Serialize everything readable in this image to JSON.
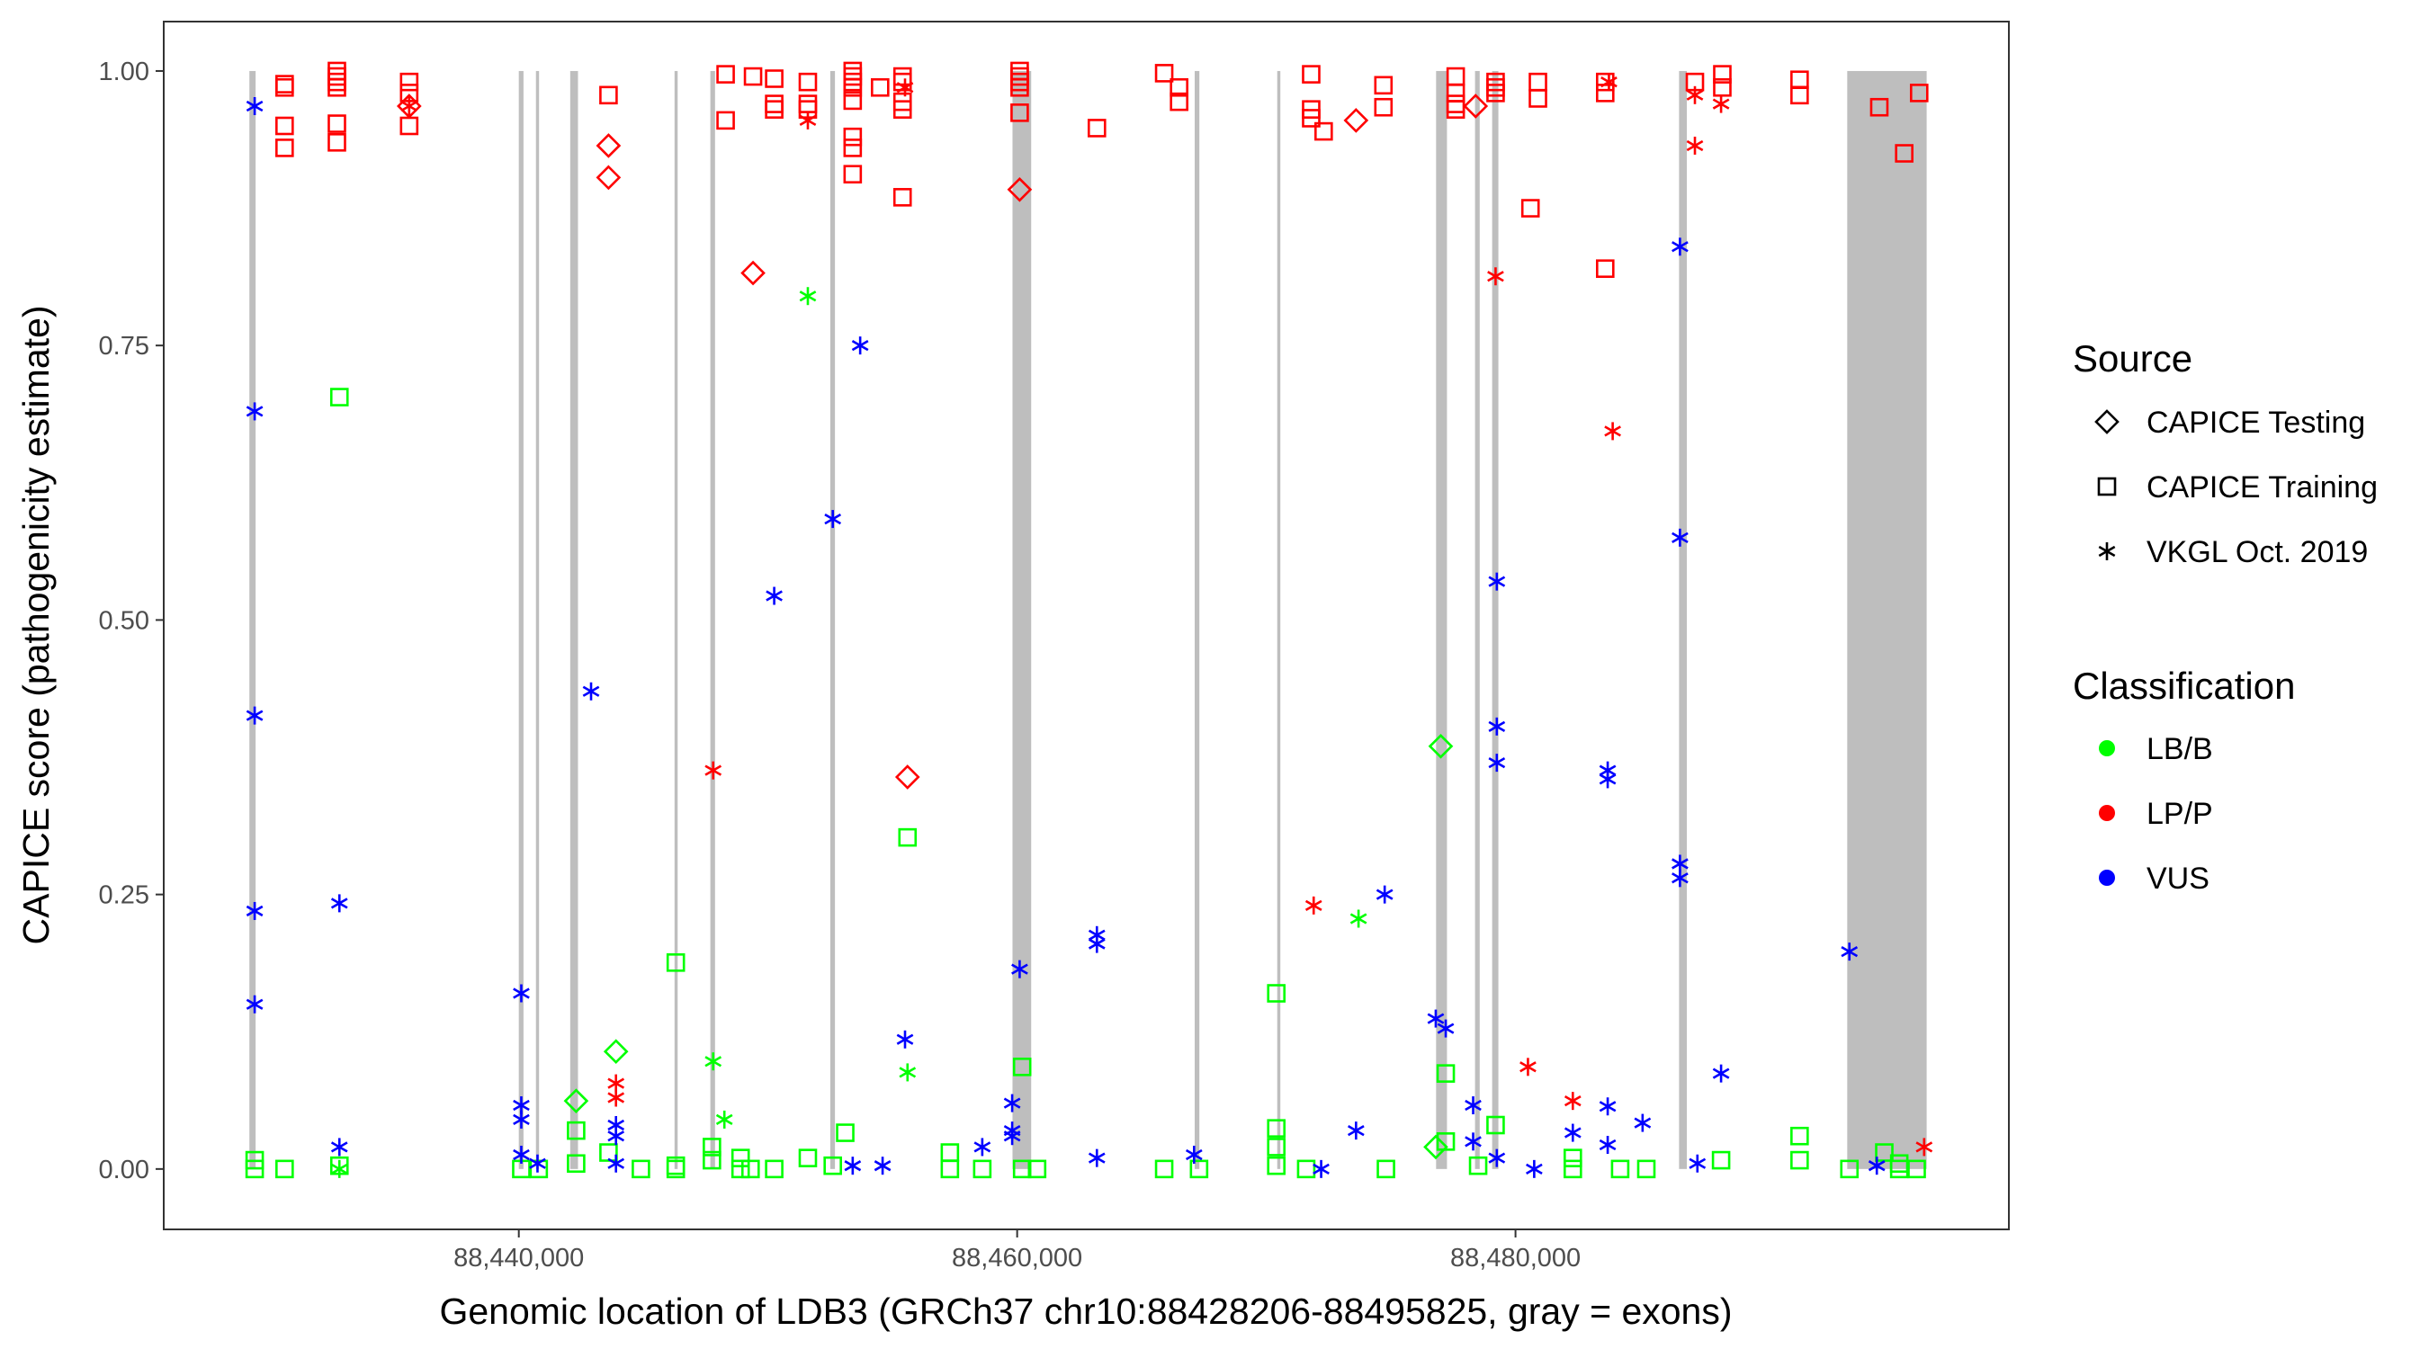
{
  "chart_data": {
    "type": "scatter",
    "xlabel": "Genomic location of LDB3 (GRCh37 chr10:88428206-88495825, gray = exons)",
    "ylabel": "CAPICE score (pathogenicity estimate)",
    "xlim": [
      88425750,
      88499800
    ],
    "ylim": [
      -0.055,
      1.045
    ],
    "x_ticks": [
      {
        "value": 88440000,
        "label": "88,440,000"
      },
      {
        "value": 88460000,
        "label": "88,460,000"
      },
      {
        "value": 88480000,
        "label": "88,480,000"
      }
    ],
    "y_ticks": [
      {
        "value": 0,
        "label": "0.00"
      },
      {
        "value": 0.25,
        "label": "0.25"
      },
      {
        "value": 0.5,
        "label": "0.50"
      },
      {
        "value": 0.75,
        "label": "0.75"
      },
      {
        "value": 1.0,
        "label": "1.00"
      }
    ],
    "grid": false,
    "exons": [
      [
        88429188,
        88429438
      ],
      [
        88440000,
        88440188
      ],
      [
        88440688,
        88440813
      ],
      [
        88442063,
        88442375
      ],
      [
        88446250,
        88446375
      ],
      [
        88447688,
        88447875
      ],
      [
        88452500,
        88452688
      ],
      [
        88459813,
        88460563
      ],
      [
        88467125,
        88467313
      ],
      [
        88470438,
        88470563
      ],
      [
        88476813,
        88477250
      ],
      [
        88478375,
        88478563
      ],
      [
        88479063,
        88479313
      ],
      [
        88486563,
        88486875
      ],
      [
        88493313,
        88496500
      ]
    ],
    "legend": {
      "placement": "right",
      "source_title": "Source",
      "sources": [
        {
          "name": "CAPICE Testing",
          "shape": "diamond"
        },
        {
          "name": "CAPICE Training",
          "shape": "square"
        },
        {
          "name": "VKGL Oct. 2019",
          "shape": "asterisk"
        }
      ],
      "class_title": "Classification",
      "classes": [
        {
          "name": "LB/B",
          "color": "#00ff00"
        },
        {
          "name": "LP/P",
          "color": "#ff0000"
        },
        {
          "name": "VUS",
          "color": "#0000ff"
        }
      ]
    },
    "series": [
      {
        "source": "CAPICE Training",
        "class": "LP/P",
        "points": [
          [
            88430600,
            0.988
          ],
          [
            88430600,
            0.985
          ],
          [
            88430600,
            0.95
          ],
          [
            88430600,
            0.93
          ],
          [
            88432700,
            1.0
          ],
          [
            88432700,
            0.995
          ],
          [
            88432700,
            0.99
          ],
          [
            88432700,
            0.985
          ],
          [
            88432700,
            0.952
          ],
          [
            88432700,
            0.935
          ],
          [
            88435600,
            0.99
          ],
          [
            88435600,
            0.98
          ],
          [
            88435600,
            0.95
          ],
          [
            88443600,
            0.978
          ],
          [
            88448300,
            0.997
          ],
          [
            88448300,
            0.955
          ],
          [
            88449400,
            0.995
          ],
          [
            88450250,
            0.993
          ],
          [
            88450250,
            0.97
          ],
          [
            88450250,
            0.965
          ],
          [
            88451600,
            0.99
          ],
          [
            88451600,
            0.97
          ],
          [
            88451600,
            0.965
          ],
          [
            88453400,
            1.0
          ],
          [
            88453400,
            0.995
          ],
          [
            88453400,
            0.99
          ],
          [
            88453400,
            0.985
          ],
          [
            88453400,
            0.973
          ],
          [
            88453400,
            0.94
          ],
          [
            88453400,
            0.93
          ],
          [
            88453400,
            0.906
          ],
          [
            88454500,
            0.985
          ],
          [
            88455400,
            0.995
          ],
          [
            88455400,
            0.99
          ],
          [
            88455400,
            0.972
          ],
          [
            88455400,
            0.965
          ],
          [
            88455400,
            0.885
          ],
          [
            88460100,
            1.0
          ],
          [
            88460100,
            0.995
          ],
          [
            88460100,
            0.99
          ],
          [
            88460100,
            0.985
          ],
          [
            88460100,
            0.962
          ],
          [
            88463200,
            0.948
          ],
          [
            88465900,
            0.998
          ],
          [
            88466500,
            0.985
          ],
          [
            88466500,
            0.972
          ],
          [
            88471800,
            0.997
          ],
          [
            88471800,
            0.965
          ],
          [
            88471800,
            0.957
          ],
          [
            88472300,
            0.945
          ],
          [
            88474700,
            0.987
          ],
          [
            88474700,
            0.967
          ],
          [
            88477600,
            0.995
          ],
          [
            88477600,
            0.98
          ],
          [
            88477600,
            0.97
          ],
          [
            88477600,
            0.965
          ],
          [
            88479200,
            0.99
          ],
          [
            88479200,
            0.985
          ],
          [
            88479200,
            0.98
          ],
          [
            88480900,
            0.99
          ],
          [
            88480900,
            0.975
          ],
          [
            88480600,
            0.875
          ],
          [
            88483600,
            0.99
          ],
          [
            88483600,
            0.98
          ],
          [
            88483600,
            0.82
          ],
          [
            88487200,
            0.99
          ],
          [
            88488300,
            0.997
          ],
          [
            88488300,
            0.985
          ],
          [
            88491400,
            0.992
          ],
          [
            88491400,
            0.978
          ],
          [
            88494600,
            0.967
          ],
          [
            88495600,
            0.925
          ],
          [
            88496200,
            0.98
          ]
        ]
      },
      {
        "source": "CAPICE Training",
        "class": "LB/B",
        "points": [
          [
            88429400,
            0.008
          ],
          [
            88429400,
            0.0
          ],
          [
            88430600,
            0.0
          ],
          [
            88432800,
            0.703
          ],
          [
            88432800,
            0.003
          ],
          [
            88440100,
            0.0
          ],
          [
            88440800,
            0.0
          ],
          [
            88442300,
            0.035
          ],
          [
            88442300,
            0.005
          ],
          [
            88443600,
            0.015
          ],
          [
            88444900,
            0.0
          ],
          [
            88446300,
            0.188
          ],
          [
            88446300,
            0.003
          ],
          [
            88446300,
            0.0
          ],
          [
            88447750,
            0.02
          ],
          [
            88447750,
            0.008
          ],
          [
            88448900,
            0.01
          ],
          [
            88448900,
            0.0
          ],
          [
            88449300,
            0.0
          ],
          [
            88450250,
            0.0
          ],
          [
            88451600,
            0.01
          ],
          [
            88453100,
            0.033
          ],
          [
            88452600,
            0.003
          ],
          [
            88455600,
            0.302
          ],
          [
            88457300,
            0.015
          ],
          [
            88457300,
            0.0
          ],
          [
            88458600,
            0.0
          ],
          [
            88460200,
            0.093
          ],
          [
            88460200,
            0.0
          ],
          [
            88460800,
            0.0
          ],
          [
            88465900,
            0.0
          ],
          [
            88467300,
            0.0
          ],
          [
            88470400,
            0.16
          ],
          [
            88470400,
            0.037
          ],
          [
            88470400,
            0.02
          ],
          [
            88470400,
            0.003
          ],
          [
            88471600,
            0.0
          ],
          [
            88474800,
            0.0
          ],
          [
            88477200,
            0.087
          ],
          [
            88477200,
            0.025
          ],
          [
            88478500,
            0.003
          ],
          [
            88479200,
            0.04
          ],
          [
            88482300,
            0.01
          ],
          [
            88482300,
            0.0
          ],
          [
            88484200,
            0.0
          ],
          [
            88485250,
            0.0
          ],
          [
            88488250,
            0.008
          ],
          [
            88491400,
            0.03
          ],
          [
            88491400,
            0.008
          ],
          [
            88493400,
            0.0
          ],
          [
            88494800,
            0.015
          ],
          [
            88495400,
            0.005
          ],
          [
            88495400,
            0.0
          ],
          [
            88496100,
            0.0
          ]
        ]
      },
      {
        "source": "CAPICE Testing",
        "class": "LP/P",
        "points": [
          [
            88435600,
            0.968
          ],
          [
            88443600,
            0.932
          ],
          [
            88443600,
            0.903
          ],
          [
            88449400,
            0.816
          ],
          [
            88455600,
            0.357
          ],
          [
            88460100,
            0.892
          ],
          [
            88473600,
            0.955
          ],
          [
            88478400,
            0.968
          ]
        ]
      },
      {
        "source": "CAPICE Testing",
        "class": "LB/B",
        "points": [
          [
            88442300,
            0.062
          ],
          [
            88443900,
            0.107
          ],
          [
            88477000,
            0.385
          ],
          [
            88476800,
            0.02
          ]
        ]
      },
      {
        "source": "VKGL Oct. 2019",
        "class": "VUS",
        "points": [
          [
            88429400,
            0.968
          ],
          [
            88429400,
            0.69
          ],
          [
            88429400,
            0.413
          ],
          [
            88429400,
            0.235
          ],
          [
            88429400,
            0.15
          ],
          [
            88432800,
            0.242
          ],
          [
            88432800,
            0.02
          ],
          [
            88440100,
            0.16
          ],
          [
            88440100,
            0.058
          ],
          [
            88440100,
            0.045
          ],
          [
            88440100,
            0.013
          ],
          [
            88440750,
            0.005
          ],
          [
            88442900,
            0.435
          ],
          [
            88443900,
            0.04
          ],
          [
            88443900,
            0.03
          ],
          [
            88443900,
            0.005
          ],
          [
            88450250,
            0.522
          ],
          [
            88452600,
            0.592
          ],
          [
            88453700,
            0.75
          ],
          [
            88453400,
            0.003
          ],
          [
            88455500,
            0.118
          ],
          [
            88454600,
            0.003
          ],
          [
            88458600,
            0.02
          ],
          [
            88459800,
            0.06
          ],
          [
            88459800,
            0.035
          ],
          [
            88459800,
            0.03
          ],
          [
            88460100,
            0.182
          ],
          [
            88463200,
            0.213
          ],
          [
            88463200,
            0.205
          ],
          [
            88463200,
            0.01
          ],
          [
            88467100,
            0.013
          ],
          [
            88472200,
            0.0
          ],
          [
            88473600,
            0.035
          ],
          [
            88474750,
            0.25
          ],
          [
            88476800,
            0.137
          ],
          [
            88477200,
            0.128
          ],
          [
            88478300,
            0.058
          ],
          [
            88478300,
            0.025
          ],
          [
            88479250,
            0.535
          ],
          [
            88479250,
            0.403
          ],
          [
            88479250,
            0.37
          ],
          [
            88479250,
            0.01
          ],
          [
            88480750,
            0.0
          ],
          [
            88482300,
            0.033
          ],
          [
            88483700,
            0.363
          ],
          [
            88483700,
            0.355
          ],
          [
            88483700,
            0.057
          ],
          [
            88483700,
            0.022
          ],
          [
            88485100,
            0.042
          ],
          [
            88486600,
            0.84
          ],
          [
            88486600,
            0.575
          ],
          [
            88486600,
            0.278
          ],
          [
            88486600,
            0.265
          ],
          [
            88487300,
            0.005
          ],
          [
            88488250,
            0.087
          ],
          [
            88493400,
            0.198
          ],
          [
            88494500,
            0.003
          ]
        ]
      },
      {
        "source": "VKGL Oct. 2019",
        "class": "LP/P",
        "points": [
          [
            88435600,
            0.968
          ],
          [
            88447800,
            0.363
          ],
          [
            88443900,
            0.078
          ],
          [
            88443900,
            0.065
          ],
          [
            88451600,
            0.955
          ],
          [
            88455500,
            0.985
          ],
          [
            88471900,
            0.24
          ],
          [
            88479200,
            0.813
          ],
          [
            88480500,
            0.093
          ],
          [
            88482300,
            0.062
          ],
          [
            88483750,
            0.99
          ],
          [
            88483900,
            0.672
          ],
          [
            88487200,
            0.978
          ],
          [
            88487200,
            0.932
          ],
          [
            88488250,
            0.97
          ],
          [
            88496400,
            0.02
          ]
        ]
      },
      {
        "source": "VKGL Oct. 2019",
        "class": "LB/B",
        "points": [
          [
            88451600,
            0.795
          ],
          [
            88447800,
            0.098
          ],
          [
            88448250,
            0.045
          ],
          [
            88455600,
            0.088
          ],
          [
            88473700,
            0.228
          ],
          [
            88432800,
            0.0
          ]
        ]
      }
    ]
  }
}
